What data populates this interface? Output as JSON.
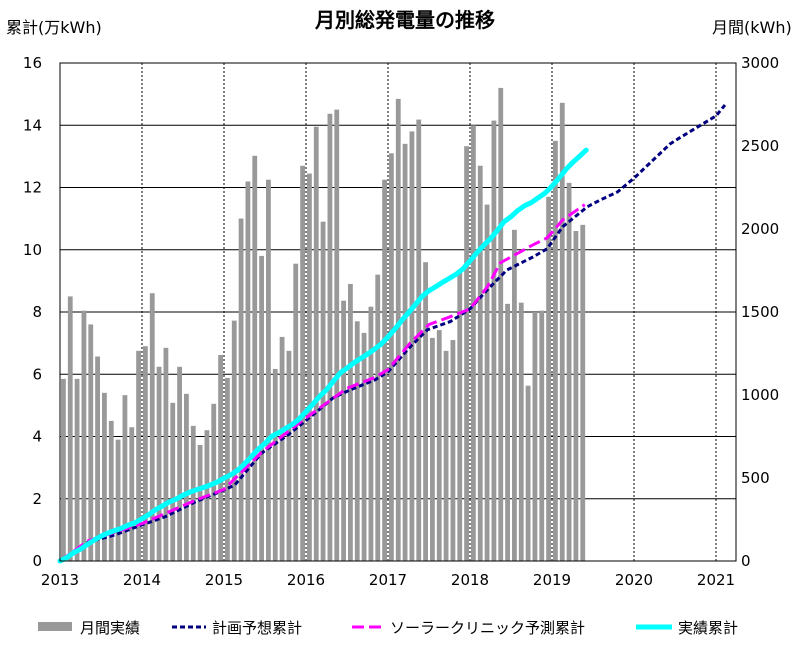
{
  "chart_data": {
    "type": "bar+line",
    "title": "月別総発電量の推移",
    "ylabel_left": "累計(万kWh)",
    "ylabel_right": "月間(kWh)",
    "ylim_left": [
      0,
      16
    ],
    "ylim_right": [
      0,
      3000
    ],
    "xlim": [
      2013,
      2021.25
    ],
    "x_ticks": [
      "2013",
      "2014",
      "2015",
      "2016",
      "2017",
      "2018",
      "2019",
      "2020",
      "2021"
    ],
    "y_ticks_left": [
      "0",
      "2",
      "4",
      "6",
      "8",
      "10",
      "12",
      "14",
      "16"
    ],
    "y_ticks_right": [
      "0",
      "500",
      "1000",
      "1500",
      "2000",
      "2500",
      "3000"
    ],
    "grid": {
      "horizontal": "solid",
      "vertical": "dotted (yearly)"
    },
    "legend_position": "bottom",
    "series": [
      {
        "name": "月間実績",
        "type": "bar",
        "axis": "right",
        "color": "#999999",
        "start": "2013-01",
        "values": [
          1097,
          1594,
          1097,
          1508,
          1425,
          1232,
          1013,
          844,
          731,
          999,
          806,
          1266,
          1294,
          1613,
          1170,
          1284,
          953,
          1170,
          1007,
          814,
          699,
          788,
          947,
          1241,
          1103,
          1448,
          2063,
          2286,
          2441,
          1838,
          2297,
          1157,
          1350,
          1266,
          1791,
          2381,
          2334,
          2616,
          2044,
          2694,
          2719,
          1568,
          1669,
          1444,
          1374,
          1532,
          1725,
          2297,
          2456,
          2784,
          2513,
          2588,
          2659,
          1800,
          1344,
          1391,
          1266,
          1331,
          1744,
          2499,
          2625,
          2381,
          2147,
          2653,
          2850,
          1549,
          1995,
          1556,
          1056,
          1500,
          1508,
          2194,
          2531,
          2760,
          2278,
          1988,
          2025
        ]
      },
      {
        "name": "計画予想累計",
        "type": "line",
        "axis": "left",
        "color": "#000080",
        "style": "dotted",
        "points": [
          [
            2013.0,
            0
          ],
          [
            2013.34,
            0.6
          ],
          [
            2013.67,
            0.84
          ],
          [
            2014.0,
            1.16
          ],
          [
            2014.28,
            1.42
          ],
          [
            2014.65,
            1.9
          ],
          [
            2015.0,
            2.28
          ],
          [
            2015.13,
            2.44
          ],
          [
            2015.46,
            3.47
          ],
          [
            2015.78,
            4.05
          ],
          [
            2016.11,
            4.75
          ],
          [
            2016.33,
            5.24
          ],
          [
            2016.54,
            5.5
          ],
          [
            2016.84,
            5.82
          ],
          [
            2017.0,
            6.08
          ],
          [
            2017.27,
            6.88
          ],
          [
            2017.48,
            7.43
          ],
          [
            2017.76,
            7.69
          ],
          [
            2018.0,
            8.1
          ],
          [
            2018.21,
            8.71
          ],
          [
            2018.45,
            9.35
          ],
          [
            2018.77,
            9.77
          ],
          [
            2018.94,
            10.03
          ],
          [
            2019.13,
            10.74
          ],
          [
            2019.43,
            11.38
          ],
          [
            2019.59,
            11.6
          ],
          [
            2019.8,
            11.86
          ],
          [
            2020.0,
            12.3
          ],
          [
            2020.44,
            13.4
          ],
          [
            2020.56,
            13.6
          ],
          [
            2021.0,
            14.3
          ],
          [
            2021.11,
            14.65
          ]
        ]
      },
      {
        "name": "ソーラークリニック予測累計",
        "type": "line",
        "axis": "left",
        "color": "#FF00FF",
        "style": "dashed",
        "points": [
          [
            2013.0,
            0
          ],
          [
            2013.34,
            0.65
          ],
          [
            2014.0,
            1.2
          ],
          [
            2014.65,
            1.95
          ],
          [
            2015.0,
            2.3
          ],
          [
            2015.46,
            3.5
          ],
          [
            2016.0,
            4.6
          ],
          [
            2016.5,
            5.55
          ],
          [
            2016.84,
            5.9
          ],
          [
            2017.0,
            6.15
          ],
          [
            2017.27,
            7.0
          ],
          [
            2017.5,
            7.6
          ],
          [
            2017.76,
            7.85
          ],
          [
            2018.0,
            8.1
          ],
          [
            2018.21,
            8.8
          ],
          [
            2018.37,
            9.58
          ],
          [
            2018.77,
            10.16
          ],
          [
            2018.94,
            10.38
          ],
          [
            2019.13,
            10.96
          ],
          [
            2019.4,
            11.45
          ]
        ]
      },
      {
        "name": "実績累計",
        "type": "line",
        "axis": "left",
        "color": "#00FFFF",
        "style": "solid",
        "derived_from": "月間実績"
      }
    ]
  }
}
